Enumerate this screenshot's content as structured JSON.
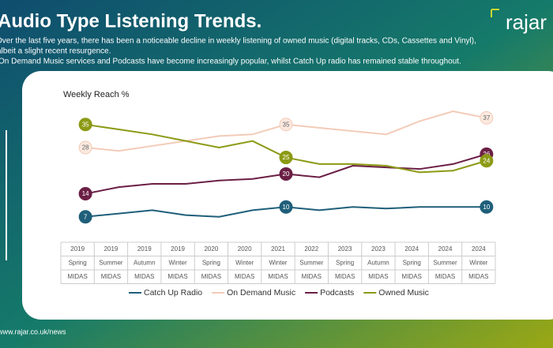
{
  "title": "Audio Type Listening Trends.",
  "subtitle": [
    "Over the last five years, there has been a noticeable decline in weekly listening of owned music (digital tracks, CDs, Cassettes and Vinyl),",
    "albeit a slight recent resurgence.",
    "On Demand Music services and Podcasts have become increasingly popular, whilst Catch Up radio has remained stable throughout."
  ],
  "logo": "rajar",
  "footer": "www.rajar.co.uk/news",
  "chart_data": {
    "type": "line",
    "title": "Weekly Reach %",
    "categories": [
      [
        "2019",
        "Spring",
        "MIDAS"
      ],
      [
        "2019",
        "Summer",
        "MIDAS"
      ],
      [
        "2019",
        "Autumn",
        "MIDAS"
      ],
      [
        "2019",
        "Winter",
        "MIDAS"
      ],
      [
        "2020",
        "Spring",
        "MIDAS"
      ],
      [
        "2020",
        "Winter",
        "MIDAS"
      ],
      [
        "2021",
        "Winter",
        "MIDAS"
      ],
      [
        "2022",
        "Summer",
        "MIDAS"
      ],
      [
        "2023",
        "Spring",
        "MIDAS"
      ],
      [
        "2023",
        "Autumn",
        "MIDAS"
      ],
      [
        "2024",
        "Spring",
        "MIDAS"
      ],
      [
        "2024",
        "Summer",
        "MIDAS"
      ],
      [
        "2024",
        "Winter",
        "MIDAS"
      ]
    ],
    "ylim": [
      0,
      45
    ],
    "series": [
      {
        "name": "Catch Up Radio",
        "color": "#1f5f7a",
        "values": [
          7,
          8,
          9,
          7.5,
          7,
          9,
          10,
          9,
          10,
          9.5,
          10,
          10,
          10
        ]
      },
      {
        "name": "On Demand Music",
        "color": "#f3cbb8",
        "values": [
          28,
          27,
          28.5,
          30,
          31.5,
          32,
          35,
          34,
          33,
          32,
          36,
          39,
          37
        ]
      },
      {
        "name": "Podcasts",
        "color": "#6b1f45",
        "values": [
          14,
          16,
          17,
          17,
          18,
          18.5,
          20,
          19,
          22.5,
          22,
          21.5,
          23,
          26
        ]
      },
      {
        "name": "Owned Music",
        "color": "#8c9a14",
        "values": [
          35,
          33.5,
          32,
          30,
          28,
          30,
          25,
          23,
          23,
          22.5,
          20.5,
          21,
          24
        ]
      }
    ]
  }
}
